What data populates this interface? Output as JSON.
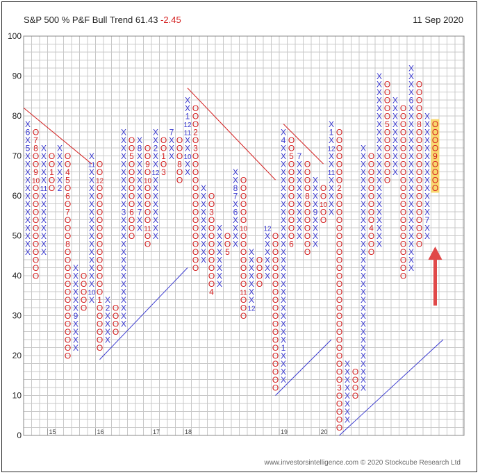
{
  "header": {
    "title": "S&P 500 % P&F Bull Trend 61.43",
    "change": "-2.45",
    "date": "11 Sep 2020"
  },
  "footer": {
    "source": "www.investorsintelligence.com  © 2020 Stockcube Research Ltd"
  },
  "colors": {
    "x_color": "#3a3ad0",
    "o_color": "#d42020",
    "uptrend_line": "#3a3ad0",
    "downtrend_line": "#d42020",
    "highlight": "#f8d560",
    "arrow": "#e04848",
    "grid": "#c8c8c8"
  },
  "chart_data": {
    "type": "point_and_figure",
    "box_size": 2,
    "ylim": [
      0,
      100
    ],
    "yticks": [
      0,
      10,
      20,
      30,
      40,
      50,
      60,
      70,
      80,
      90,
      100
    ],
    "year_labels": [
      {
        "col": 3,
        "label": "15"
      },
      {
        "col": 9,
        "label": "16"
      },
      {
        "col": 16,
        "label": "17"
      },
      {
        "col": 20,
        "label": "18"
      },
      {
        "col": 32,
        "label": "19"
      },
      {
        "col": 37,
        "label": "20"
      }
    ],
    "columns": [
      {
        "type": "X",
        "low": 46,
        "high": 78,
        "marks": {
          "76": "6",
          "72": "5"
        }
      },
      {
        "type": "O",
        "low": 40,
        "high": 76,
        "marks": {
          "74": "7",
          "72": "8",
          "66": "9",
          "64": "10"
        }
      },
      {
        "type": "X",
        "low": 46,
        "high": 72,
        "marks": {
          "62": "11"
        }
      },
      {
        "type": "O",
        "low": 62,
        "high": 70,
        "marks": {
          "66": "1"
        }
      },
      {
        "type": "X",
        "low": 62,
        "high": 72,
        "marks": {
          "62": "2"
        }
      },
      {
        "type": "O",
        "low": 20,
        "high": 70,
        "marks": {
          "66": "4",
          "64": "5",
          "60": "6",
          "56": "7",
          "48": "8"
        }
      },
      {
        "type": "X",
        "low": 22,
        "high": 42,
        "marks": {
          "30": "9"
        }
      },
      {
        "type": "O",
        "low": 32,
        "high": 40,
        "marks": {}
      },
      {
        "type": "X",
        "low": 34,
        "high": 70,
        "marks": {
          "68": "11",
          "36": "10"
        }
      },
      {
        "type": "O",
        "low": 22,
        "high": 68,
        "marks": {
          "64": "12",
          "34": "1"
        }
      },
      {
        "type": "X",
        "low": 24,
        "high": 34,
        "marks": {
          "32": "2"
        }
      },
      {
        "type": "O",
        "low": 26,
        "high": 32,
        "marks": {}
      },
      {
        "type": "X",
        "low": 28,
        "high": 76,
        "marks": {
          "56": "3"
        }
      },
      {
        "type": "O",
        "low": 50,
        "high": 74,
        "marks": {
          "70": "5",
          "56": "6"
        }
      },
      {
        "type": "X",
        "low": 52,
        "high": 74,
        "marks": {
          "72": "8",
          "56": "7"
        }
      },
      {
        "type": "O",
        "low": 48,
        "high": 72,
        "marks": {
          "68": "9",
          "64": "10",
          "52": "11"
        }
      },
      {
        "type": "X",
        "low": 50,
        "high": 76,
        "marks": {
          "72": "2",
          "66": "12"
        }
      },
      {
        "type": "O",
        "low": 66,
        "high": 74,
        "marks": {
          "70": "1",
          "66": "3"
        }
      },
      {
        "type": "X",
        "low": 70,
        "high": 76,
        "marks": {
          "76": "7"
        }
      },
      {
        "type": "O",
        "low": 64,
        "high": 74,
        "marks": {
          "68": "8"
        }
      },
      {
        "type": "X",
        "low": 66,
        "high": 84,
        "marks": {
          "80": "1",
          "78": "12",
          "76": "11",
          "70": "10"
        }
      },
      {
        "type": "O",
        "low": 42,
        "high": 82,
        "marks": {
          "76": "2",
          "72": "3"
        }
      },
      {
        "type": "X",
        "low": 44,
        "high": 62,
        "marks": {}
      },
      {
        "type": "O",
        "low": 36,
        "high": 60,
        "marks": {
          "56": "3",
          "36": "4"
        }
      },
      {
        "type": "X",
        "low": 38,
        "high": 52,
        "marks": {}
      },
      {
        "type": "O",
        "low": 46,
        "high": 50,
        "marks": {
          "46": "5"
        }
      },
      {
        "type": "X",
        "low": 48,
        "high": 66,
        "marks": {
          "62": "8",
          "60": "7",
          "56": "6"
        }
      },
      {
        "type": "O",
        "low": 30,
        "high": 64,
        "marks": {
          "52": "10",
          "36": "11"
        }
      },
      {
        "type": "X",
        "low": 32,
        "high": 46,
        "marks": {
          "32": "12"
        }
      },
      {
        "type": "O",
        "low": 38,
        "high": 44,
        "marks": {}
      },
      {
        "type": "X",
        "low": 40,
        "high": 52,
        "marks": {
          "52": "12"
        }
      },
      {
        "type": "O",
        "low": 12,
        "high": 50,
        "marks": {}
      },
      {
        "type": "X",
        "low": 14,
        "high": 76,
        "marks": {
          "74": "4",
          "22": "1"
        }
      },
      {
        "type": "O",
        "low": 48,
        "high": 74,
        "marks": {
          "70": "5",
          "48": "6"
        }
      },
      {
        "type": "X",
        "low": 50,
        "high": 70,
        "marks": {
          "70": "7"
        }
      },
      {
        "type": "O",
        "low": 46,
        "high": 68,
        "marks": {
          "60": "8"
        }
      },
      {
        "type": "X",
        "low": 48,
        "high": 64,
        "marks": {
          "56": "9"
        }
      },
      {
        "type": "O",
        "low": 54,
        "high": 62,
        "marks": {
          "58": "10"
        }
      },
      {
        "type": "X",
        "low": 56,
        "high": 78,
        "marks": {
          "76": "1",
          "72": "12",
          "66": "11"
        }
      },
      {
        "type": "O",
        "low": 2,
        "high": 76,
        "marks": {
          "62": "2",
          "12": "3"
        }
      },
      {
        "type": "X",
        "low": 4,
        "high": 18,
        "marks": {}
      },
      {
        "type": "O",
        "low": 10,
        "high": 16,
        "marks": {}
      },
      {
        "type": "X",
        "low": 12,
        "high": 72,
        "marks": {}
      },
      {
        "type": "O",
        "low": 46,
        "high": 70,
        "marks": {
          "52": "4"
        }
      },
      {
        "type": "X",
        "low": 48,
        "high": 90,
        "marks": {}
      },
      {
        "type": "O",
        "low": 64,
        "high": 88,
        "marks": {
          "78": "5"
        }
      },
      {
        "type": "X",
        "low": 66,
        "high": 84,
        "marks": {}
      },
      {
        "type": "O",
        "low": 40,
        "high": 82,
        "marks": {}
      },
      {
        "type": "X",
        "low": 42,
        "high": 92,
        "marks": {
          "84": "6"
        }
      },
      {
        "type": "O",
        "low": 48,
        "high": 88,
        "marks": {
          "78": "8"
        }
      },
      {
        "type": "X",
        "low": 50,
        "high": 80,
        "marks": {
          "54": "7"
        }
      },
      {
        "type": "O",
        "low": 62,
        "high": 78,
        "marks": {
          "70": "9"
        }
      }
    ],
    "highlight_column": 51,
    "trend_lines": [
      {
        "kind": "down",
        "from": {
          "col": -0.5,
          "y": 82
        },
        "to": {
          "col": 8.0,
          "y": 68
        }
      },
      {
        "kind": "up",
        "from": {
          "col": 9.0,
          "y": 19
        },
        "to": {
          "col": 20.0,
          "y": 42
        }
      },
      {
        "kind": "down",
        "from": {
          "col": 20.0,
          "y": 87
        },
        "to": {
          "col": 31.0,
          "y": 64
        }
      },
      {
        "kind": "up",
        "from": {
          "col": 31.0,
          "y": 10
        },
        "to": {
          "col": 38.0,
          "y": 24
        }
      },
      {
        "kind": "down",
        "from": {
          "col": 32.0,
          "y": 78
        },
        "to": {
          "col": 37.0,
          "y": 68
        }
      },
      {
        "kind": "up",
        "from": {
          "col": 39.0,
          "y": 0
        },
        "to": {
          "col": 52.0,
          "y": 24
        }
      }
    ]
  }
}
